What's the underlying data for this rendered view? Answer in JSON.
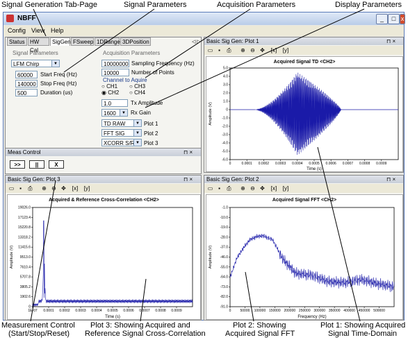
{
  "annotations": {
    "tab_page": "Signal Generation Tab-Page",
    "signal_params": "Signal Parameters",
    "acq_params": "Acquisition Parameters",
    "display_params": "Display Parameters",
    "meas_control": "Measurement Control",
    "meas_control_2": "(Start/Stop/Reset)",
    "plot3": "Plot 3: Showing Acquired and",
    "plot3_2": "Reference Signal Cross-Correlation",
    "plot2": "Plot 2: Showing",
    "plot2_2": "Acquired Signal FFT",
    "plot1": "Plot 1: Showing Acquired",
    "plot1_2": "Signal Time-Domain"
  },
  "window": {
    "title": "NBFF",
    "min": "_",
    "max": "□",
    "close": "x"
  },
  "menu": [
    "Config",
    "View",
    "Help"
  ],
  "tabs": [
    "Status",
    "HW Cal",
    "SigGen",
    "FSweep",
    "1DRange",
    "3DPosition"
  ],
  "tab_nav": "◁ ▷",
  "sig_params": {
    "header": "Signal Parameters",
    "waveform": "LFM Chirp",
    "start_freq_value": "60000",
    "start_freq_label": "Start Freq (Hz)",
    "stop_freq_value": "140000",
    "stop_freq_label": "Stop Freq (Hz)",
    "duration_value": "500",
    "duration_label": "Duration (us)"
  },
  "acq_params": {
    "header": "Acquisition Parameters",
    "fs_value": "10000000",
    "fs_label": "Sampling Frequency (Hz)",
    "npts_value": "10000",
    "npts_label": "Number of Points",
    "channel_label": "Channel to Aquire",
    "ch1": "CH1",
    "ch2": "CH2",
    "ch3": "CH3",
    "ch4": "CH4",
    "tx_amp_value": "1.0",
    "tx_amp_label": "Tx Amplitude",
    "rx_gain_value": "1600",
    "rx_gain_label": "Rx Gain",
    "plot1_sel": "TD RAW",
    "plot1_label": "Plot 1",
    "plot2_sel": "FFT SIG",
    "plot2_label": "Plot 2",
    "plot3_sel": "XCORR S/R",
    "plot3_label": "Plot 3"
  },
  "meas_control": {
    "title": "Meas Control",
    "start": ">>",
    "pause": "||",
    "reset": "X"
  },
  "pane_icons": "⊓ ×",
  "toolbar": {
    "zoom_x": "[x]",
    "zoom_y": "[y]"
  },
  "plot1": {
    "pane_title": "Basic Sig Gen: Plot 1"
  },
  "plot2": {
    "pane_title": "Basic Sig Gen: Plot 2"
  },
  "plot3": {
    "pane_title": "Basic Sig Gen: Plot 3"
  },
  "chart_data": [
    {
      "type": "line",
      "title": "Acquired Signal TD <CH2>",
      "xlabel": "Time (s)",
      "ylabel": "Amplitude (V)",
      "xlim": [
        0,
        0.001
      ],
      "ylim": [
        -6.0,
        5.0
      ],
      "yticks": [
        5.0,
        4.0,
        3.0,
        2.0,
        1.0,
        0,
        -1.0,
        -2.0,
        -3.0,
        -4.0,
        -5.0,
        -6.0
      ],
      "xticks": [
        "0",
        "0.0001",
        "0.0002",
        "0.0003",
        "0.0004",
        "0.0005",
        "0.0006",
        "0.0007",
        "0.0008",
        "0.0009"
      ],
      "series": [
        {
          "x_start": 0.00015,
          "x_end": 0.00066,
          "peak_amplitude": 5.0,
          "peak_time": 0.0004
        }
      ]
    },
    {
      "type": "line",
      "title": "Acquired Signal FFT <CH2>",
      "xlabel": "Frequency (Hz)",
      "ylabel": "Amplitude (V)",
      "xlim": [
        0,
        500000
      ],
      "ylim": [
        -94.0,
        1.0
      ],
      "yticks": [
        -1.0,
        -10.0,
        -19.0,
        -28.0,
        -37.0,
        -46.0,
        -55.0,
        -64.0,
        -73.0,
        -82.0,
        -91.0
      ],
      "xticks": [
        "0",
        "50000",
        "100000",
        "150000",
        "200000",
        "250000",
        "300000",
        "350000",
        "400000",
        "450000",
        "500000"
      ],
      "series": [
        {
          "x": [
            0,
            20000,
            40000,
            60000,
            80000,
            100000,
            130000,
            160000,
            200000,
            250000,
            300000,
            350000,
            400000,
            450000,
            500000
          ],
          "y": [
            -66,
            -48,
            -38,
            -30,
            -27,
            -26,
            -30,
            -48,
            -62,
            -64,
            -70,
            -71,
            -68,
            -72,
            -75
          ]
        }
      ]
    },
    {
      "type": "line",
      "title": "Acquired & Reference Cross-Correlation <CH2>",
      "xlabel": "Time (s)",
      "ylabel": "Amplitude (V)",
      "ylim": [
        0,
        19026.0
      ],
      "yticks": [
        "19026.0",
        "17123.4",
        "15220.8",
        "13318.2",
        "11415.6",
        "9513.0",
        "7610.4",
        "5707.8",
        "3805.2",
        "1902.6",
        "0"
      ],
      "xticks": [
        "1E-07",
        "0.0001",
        "0.0002",
        "0.0003",
        "0.0004",
        "0.0005",
        "0.0006",
        "0.0007",
        "0.0008",
        "0.0009"
      ],
      "series": [
        {
          "peak_time": 7e-05,
          "peak_value": 16500,
          "noise_floor": 1900
        }
      ]
    }
  ],
  "colors": {
    "signal": "#1a1aa8",
    "frame": "#5a7ab8"
  }
}
